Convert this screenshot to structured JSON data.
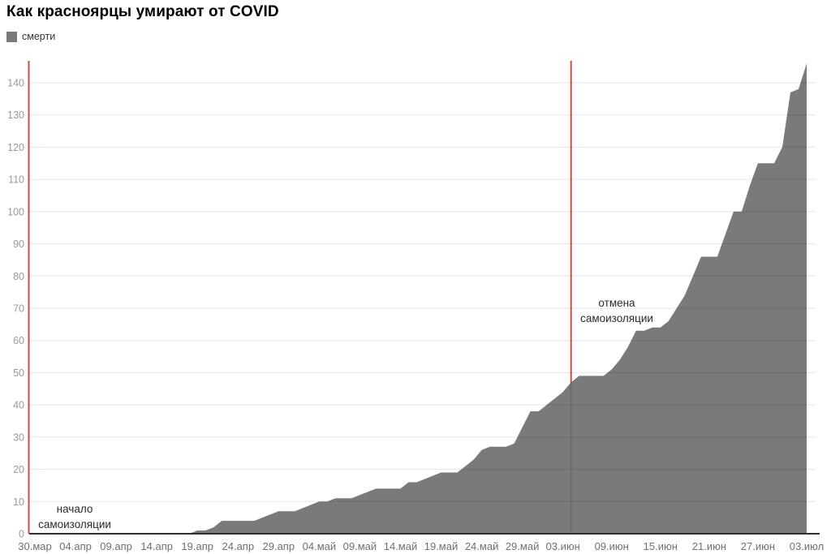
{
  "header": {
    "title": "Как красноярцы умирают от COVID"
  },
  "legend": {
    "label": "смерти",
    "swatch_color": "#7a7a7a"
  },
  "chart_data": {
    "type": "area",
    "title": "Как красноярцы умирают от COVID",
    "xlabel": "",
    "ylabel": "",
    "grid": "horizontal",
    "legend_position": "top-left",
    "y_ticks": [
      0,
      10,
      20,
      30,
      40,
      50,
      60,
      70,
      80,
      90,
      100,
      110,
      120,
      130,
      140
    ],
    "ylim": [
      0,
      147
    ],
    "series": [
      {
        "name": "смерти",
        "start_label": "30.мар",
        "frequency": "daily",
        "values": [
          0,
          0,
          0,
          0,
          0,
          0,
          0,
          0,
          0,
          0,
          0,
          0,
          0,
          0,
          0,
          0,
          0,
          0,
          0,
          0,
          1,
          1,
          2,
          4,
          4,
          4,
          4,
          4,
          5,
          6,
          7,
          7,
          7,
          8,
          9,
          10,
          10,
          11,
          11,
          11,
          12,
          13,
          14,
          14,
          14,
          14,
          16,
          16,
          17,
          18,
          19,
          19,
          19,
          21,
          23,
          26,
          27,
          27,
          27,
          28,
          33,
          38,
          38,
          40,
          42,
          44,
          47,
          49,
          49,
          49,
          49,
          51,
          54,
          58,
          63,
          63,
          64,
          64,
          66,
          70,
          74,
          80,
          86,
          86,
          86,
          93,
          100,
          100,
          108,
          115,
          115,
          115,
          120,
          137,
          138,
          146
        ]
      }
    ],
    "x_ticks": [
      {
        "label": "30.мар",
        "day": 0
      },
      {
        "label": "04.апр",
        "day": 5
      },
      {
        "label": "09.апр",
        "day": 10
      },
      {
        "label": "14.апр",
        "day": 15
      },
      {
        "label": "19.апр",
        "day": 20
      },
      {
        "label": "24.апр",
        "day": 25
      },
      {
        "label": "29.апр",
        "day": 30
      },
      {
        "label": "04.май",
        "day": 35
      },
      {
        "label": "09.май",
        "day": 40
      },
      {
        "label": "14.май",
        "day": 45
      },
      {
        "label": "19.май",
        "day": 50
      },
      {
        "label": "24.май",
        "day": 55
      },
      {
        "label": "29.май",
        "day": 60
      },
      {
        "label": "03.июн",
        "day": 65
      },
      {
        "label": "09.июн",
        "day": 71
      },
      {
        "label": "15.июн",
        "day": 77
      },
      {
        "label": "21.июн",
        "day": 83
      },
      {
        "label": "27.июн",
        "day": 89
      },
      {
        "label": "03.июл",
        "day": 95
      }
    ],
    "annotations": [
      {
        "id": "start",
        "lines": [
          "начало",
          "самоизоляции"
        ],
        "line_position": "plot-left-edge"
      },
      {
        "id": "end",
        "lines": [
          "отмена",
          "самоизоляции"
        ],
        "day": 66
      }
    ],
    "colors": {
      "area": "#6b6b6b",
      "area_opacity": 0.9,
      "event_line": "#cc4f4a",
      "grid": "rgba(0,0,0,0.10)",
      "axis_line": "#2f2f2f",
      "y_tick_text": "#999999",
      "x_tick_text": "#6f6f6f",
      "annotation_text": "#2b2b2b"
    }
  }
}
